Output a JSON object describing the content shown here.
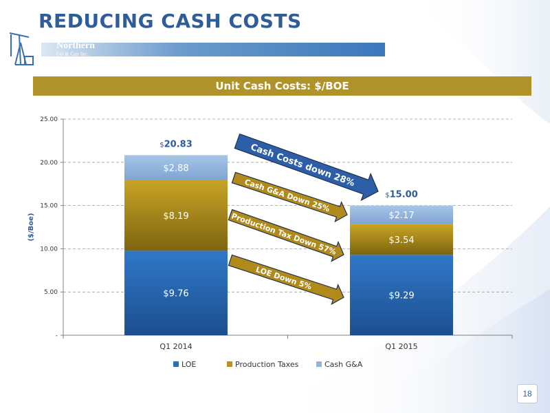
{
  "slide": {
    "title": "REDUCING CASH COSTS",
    "page_number": "18",
    "logo": {
      "line1": "Northern",
      "line2": "Oil & Gas Inc."
    },
    "banner": "Unit Cash Costs: $/BOE"
  },
  "chart_data": {
    "type": "bar",
    "stacked": true,
    "categories": [
      "Q1 2014",
      "Q1 2015"
    ],
    "series": [
      {
        "name": "LOE",
        "values": [
          9.76,
          9.29
        ],
        "labels": [
          "$9.76",
          "$9.29"
        ],
        "color": "#2d6db5"
      },
      {
        "name": "Production Taxes",
        "values": [
          8.19,
          3.54
        ],
        "labels": [
          "$8.19",
          "$3.54"
        ],
        "color": "#b8961c"
      },
      {
        "name": "Cash G&A",
        "values": [
          2.88,
          2.17
        ],
        "labels": [
          "$2.88",
          "$2.17"
        ],
        "color": "#8fb3dc"
      }
    ],
    "totals": [
      {
        "prefix": "$",
        "value": "20.83"
      },
      {
        "prefix": "$",
        "value": "15.00"
      }
    ],
    "ylabel": "($/Boe)",
    "xlabel": "",
    "ylim": [
      0,
      25
    ],
    "yticks": [
      {
        "value": 0,
        "label": "-"
      },
      {
        "value": 5,
        "label": "5.00"
      },
      {
        "value": 10,
        "label": "10.00"
      },
      {
        "value": 15,
        "label": "15.00"
      },
      {
        "value": 20,
        "label": "20.00"
      },
      {
        "value": 25,
        "label": "25.00"
      }
    ],
    "grid": true,
    "legend_position": "bottom",
    "annotations": [
      {
        "text": "Cash Costs down 28%",
        "color": "#2d5fa8"
      },
      {
        "text": "Cash G&A Down 25%",
        "color": "#b08a1a"
      },
      {
        "text": "Production Tax Down 57%",
        "color": "#b08a1a"
      },
      {
        "text": "LOE Down 5%",
        "color": "#b08a1a"
      }
    ]
  }
}
